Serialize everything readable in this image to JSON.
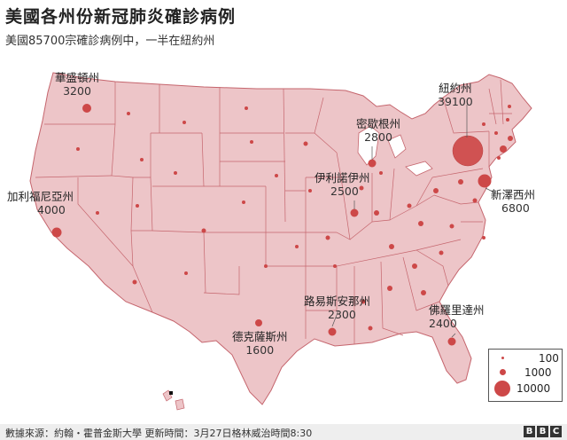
{
  "header": {
    "title": "美國各州份新冠肺炎確診病例",
    "subtitle": "美國85700宗確診病例中，一半在紐約州"
  },
  "labels": {
    "washington": {
      "name": "華盛頓州",
      "value": "3200"
    },
    "california": {
      "name": "加利福尼亞州",
      "value": "4000"
    },
    "michigan": {
      "name": "密歇根州",
      "value": "2800"
    },
    "illinois": {
      "name": "伊利諾伊州",
      "value": "2500"
    },
    "new_york": {
      "name": "紐約州",
      "value": "39100"
    },
    "new_jersey": {
      "name": "新澤西州",
      "value": "6800"
    },
    "louisiana": {
      "name": "路易斯安那州",
      "value": "2300"
    },
    "florida": {
      "name": "佛羅里達州",
      "value": "2400"
    },
    "texas": {
      "name": "德克薩斯州",
      "value": "1600"
    }
  },
  "legend": {
    "items": [
      {
        "label": "100"
      },
      {
        "label": "1000"
      },
      {
        "label": "10000"
      }
    ]
  },
  "colors": {
    "land": "#edc5c8",
    "border": "#c5656d",
    "bubble": "#cd4848"
  },
  "footer": {
    "source": "數據來源：約翰・霍普金斯大學 更新時間：3月27日格林威治時間8:30",
    "logo": [
      "B",
      "B",
      "C"
    ]
  }
}
